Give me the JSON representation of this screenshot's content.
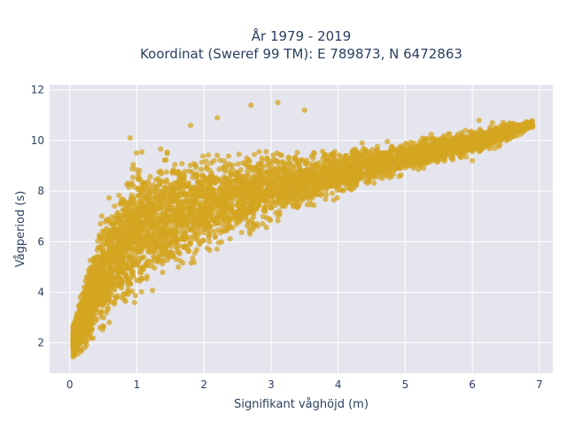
{
  "chart_data": {
    "type": "scatter",
    "title_lines": [
      "År 1979 - 2019",
      "Koordinat (Sweref 99 TM): E 789873, N 6472863"
    ],
    "xlabel": "Signifikant våghöjd (m)",
    "ylabel": "Vågperiod (s)",
    "xlim": [
      -0.3,
      7.2
    ],
    "ylim": [
      0.8,
      12.2
    ],
    "x_ticks": [
      "0",
      "1",
      "2",
      "3",
      "4",
      "5",
      "6",
      "7"
    ],
    "y_ticks": [
      "2",
      "4",
      "6",
      "8",
      "10",
      "12"
    ],
    "grid": true,
    "series": [
      {
        "color": "#D4A520",
        "approximate_envelope": [
          {
            "x": 0.05,
            "y_low": 1.4,
            "y_high": 2.8
          },
          {
            "x": 0.2,
            "y_low": 1.6,
            "y_high": 4.5
          },
          {
            "x": 0.5,
            "y_low": 2.4,
            "y_high": 7.5
          },
          {
            "x": 1.0,
            "y_low": 3.6,
            "y_high": 9.7
          },
          {
            "x": 1.5,
            "y_low": 4.5,
            "y_high": 10.0
          },
          {
            "x": 2.0,
            "y_low": 5.3,
            "y_high": 9.8
          },
          {
            "x": 2.5,
            "y_low": 6.0,
            "y_high": 9.7
          },
          {
            "x": 3.0,
            "y_low": 6.6,
            "y_high": 9.7
          },
          {
            "x": 3.5,
            "y_low": 7.2,
            "y_high": 9.7
          },
          {
            "x": 4.0,
            "y_low": 7.7,
            "y_high": 9.8
          },
          {
            "x": 4.5,
            "y_low": 8.2,
            "y_high": 10.0
          },
          {
            "x": 5.0,
            "y_low": 8.6,
            "y_high": 10.1
          },
          {
            "x": 5.5,
            "y_low": 9.0,
            "y_high": 10.3
          },
          {
            "x": 6.0,
            "y_low": 9.4,
            "y_high": 10.5
          },
          {
            "x": 6.5,
            "y_low": 9.8,
            "y_high": 10.8
          },
          {
            "x": 6.9,
            "y_low": 10.5,
            "y_high": 10.8
          }
        ],
        "outliers": [
          {
            "x": 2.7,
            "y": 11.4
          },
          {
            "x": 3.1,
            "y": 11.5
          },
          {
            "x": 3.5,
            "y": 11.2
          },
          {
            "x": 2.2,
            "y": 10.9
          },
          {
            "x": 1.8,
            "y": 10.6
          },
          {
            "x": 0.9,
            "y": 10.1
          },
          {
            "x": 6.1,
            "y": 10.8
          },
          {
            "x": 6.3,
            "y": 10.7
          },
          {
            "x": 6.8,
            "y": 10.7
          },
          {
            "x": 6.0,
            "y": 9.2
          },
          {
            "x": 6.6,
            "y": 10.2
          },
          {
            "x": 5.9,
            "y": 10.4
          }
        ]
      }
    ]
  }
}
